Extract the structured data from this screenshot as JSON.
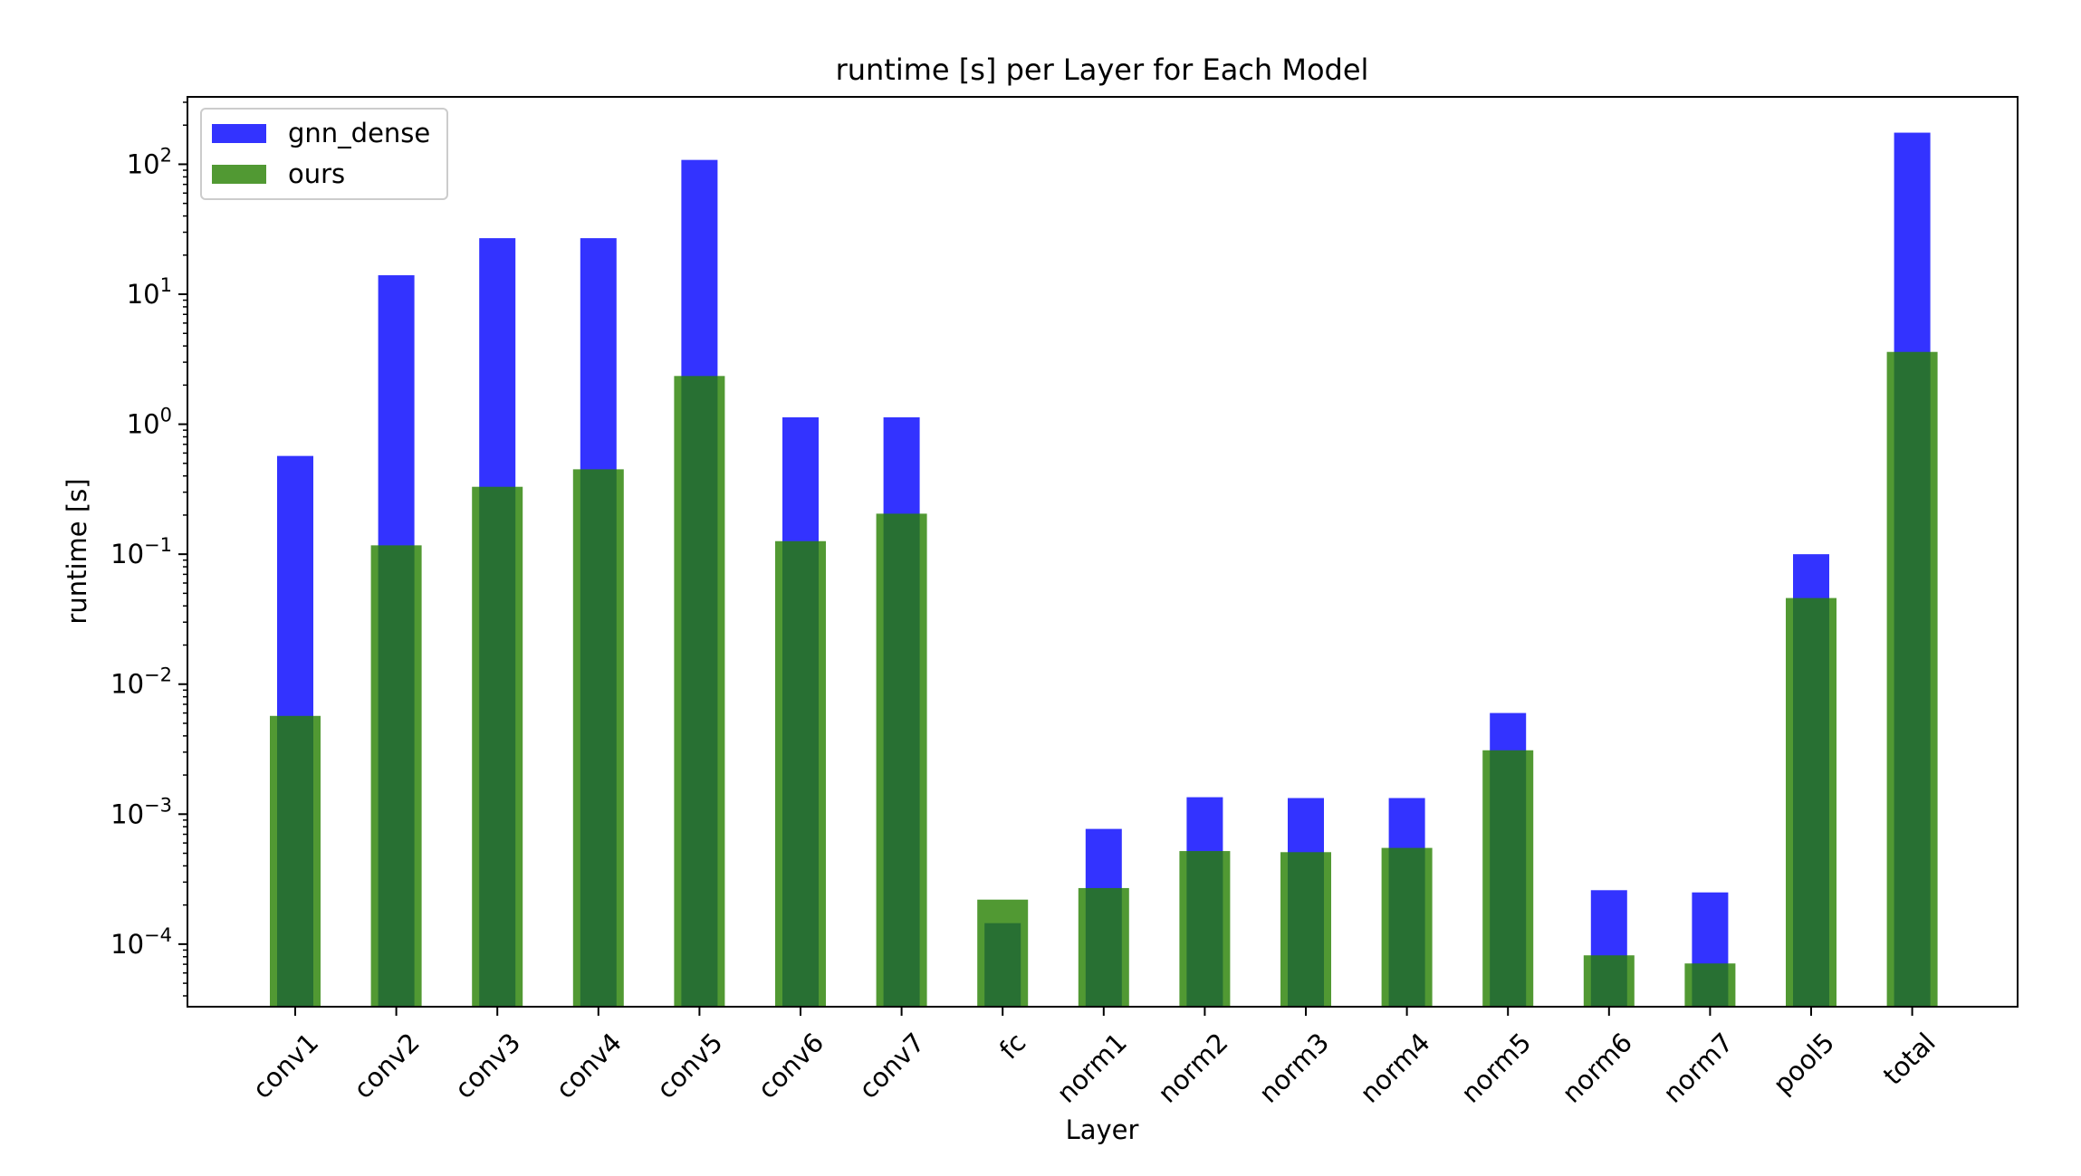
{
  "chart_data": {
    "type": "bar",
    "title": "runtime [s] per Layer for Each Model",
    "xlabel": "Layer",
    "ylabel": "runtime [s]",
    "yscale": "log",
    "ylim": [
      3.3e-05,
      330
    ],
    "grid": false,
    "legend_position": "top-left",
    "categories": [
      "conv1",
      "conv2",
      "conv3",
      "conv4",
      "conv5",
      "conv6",
      "conv7",
      "fc",
      "norm1",
      "norm2",
      "norm3",
      "norm4",
      "norm5",
      "norm6",
      "norm7",
      "pool5",
      "total"
    ],
    "series": [
      {
        "name": "gnn_dense",
        "color": "#0000ff",
        "opacity": 0.8,
        "values": [
          0.57,
          14,
          27,
          27,
          108,
          1.13,
          1.13,
          0.000145,
          0.00077,
          0.00135,
          0.00133,
          0.00133,
          0.006,
          0.00026,
          0.00025,
          0.1,
          175
        ]
      },
      {
        "name": "ours",
        "color": "#267f00",
        "opacity": 0.8,
        "values": [
          0.0057,
          0.117,
          0.33,
          0.45,
          2.35,
          0.126,
          0.205,
          0.00022,
          0.00027,
          0.00052,
          0.00051,
          0.00055,
          0.0031,
          8.2e-05,
          7.1e-05,
          0.046,
          3.6
        ]
      }
    ],
    "y_ticks": [
      {
        "value": 0.0001,
        "base": "10",
        "exp": "−4"
      },
      {
        "value": 0.001,
        "base": "10",
        "exp": "−3"
      },
      {
        "value": 0.01,
        "base": "10",
        "exp": "−2"
      },
      {
        "value": 0.1,
        "base": "10",
        "exp": "−1"
      },
      {
        "value": 1,
        "base": "10",
        "exp": "0"
      },
      {
        "value": 10,
        "base": "10",
        "exp": "1"
      },
      {
        "value": 100,
        "base": "10",
        "exp": "2"
      }
    ]
  }
}
